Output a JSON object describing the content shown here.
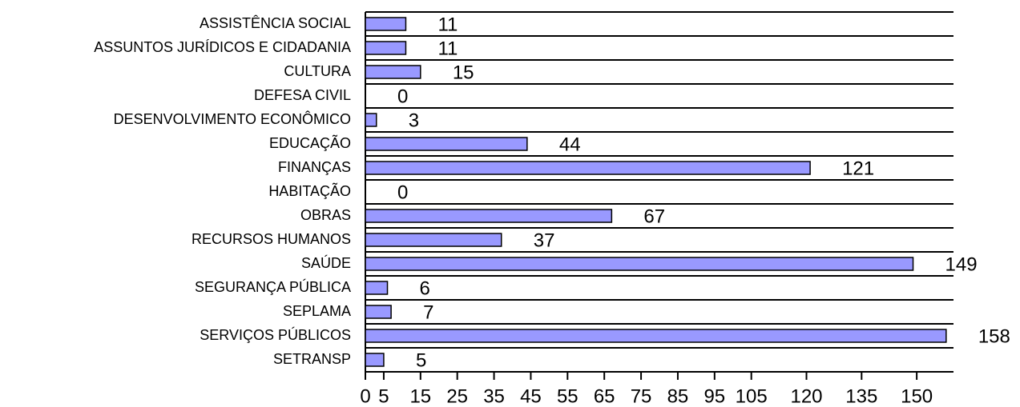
{
  "chart_data": {
    "type": "bar",
    "orientation": "horizontal",
    "categories": [
      "ASSISTÊNCIA SOCIAL",
      "ASSUNTOS JURÍDICOS E CIDADANIA",
      "CULTURA",
      "DEFESA CIVIL",
      "DESENVOLVIMENTO ECONÔMICO",
      "EDUCAÇÃO",
      "FINANÇAS",
      "HABITAÇÃO",
      "OBRAS",
      "RECURSOS HUMANOS",
      "SAÚDE",
      "SEGURANÇA PÚBLICA",
      "SEPLAMA",
      "SERVIÇOS PÚBLICOS",
      "SETRANSP"
    ],
    "values": [
      11,
      11,
      15,
      0,
      3,
      44,
      121,
      0,
      67,
      37,
      149,
      6,
      7,
      158,
      5
    ],
    "color": "#9999ff",
    "xlim": [
      0,
      160
    ],
    "xticks": [
      0,
      5,
      15,
      25,
      35,
      45,
      55,
      65,
      75,
      85,
      95,
      105,
      120,
      135,
      150
    ],
    "grid": true
  }
}
